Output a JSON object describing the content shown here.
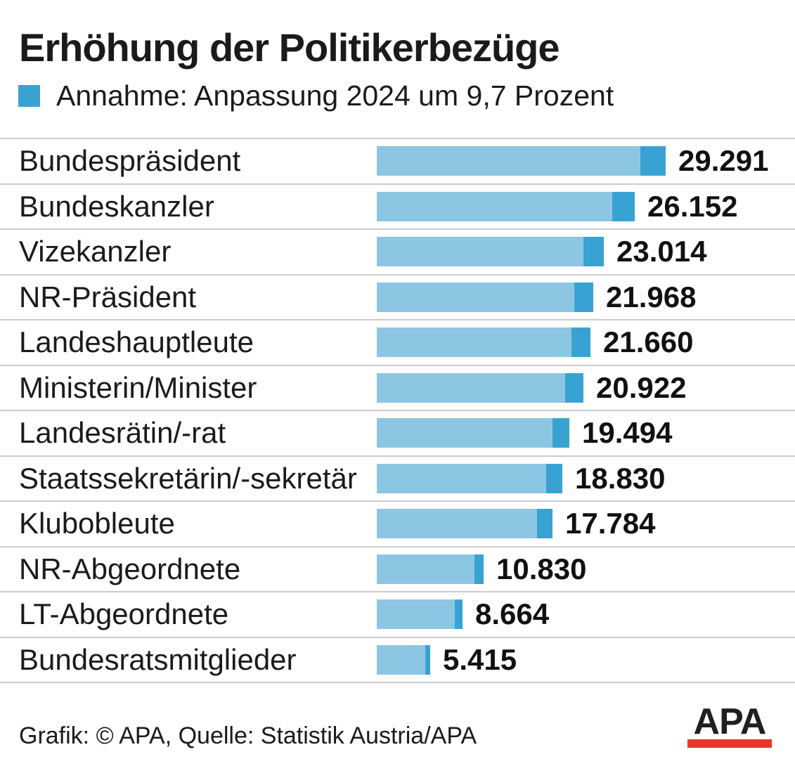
{
  "title": "Erhöhung der Politikerbezüge",
  "legend": {
    "label": "Annahme: Anpassung 2024 um 9,7 Prozent",
    "swatch_color": "#38a3d2"
  },
  "chart_data": {
    "type": "bar",
    "orientation": "horizontal",
    "title": "Erhöhung der Politikerbezüge",
    "legend_entry": "Annahme: Anpassung 2024 um 9,7 Prozent",
    "increase_percent_2024": 9.7,
    "categories": [
      "Bundespräsident",
      "Bundeskanzler",
      "Vizekanzler",
      "NR-Präsident",
      "Landeshauptleute",
      "Ministerin/Minister",
      "Landesrätin/-rat",
      "Staatssekretärin/-sekretär",
      "Klubobleute",
      "NR-Abgeordnete",
      "LT-Abgeordnete",
      "Bundesratsmitglieder"
    ],
    "values": [
      29291,
      26152,
      23014,
      21968,
      21660,
      20922,
      19494,
      18830,
      17784,
      10830,
      8664,
      5415
    ],
    "value_labels": [
      "29.291",
      "26.152",
      "23.014",
      "21.968",
      "21.660",
      "20.922",
      "19.494",
      "18.830",
      "17.784",
      "10.830",
      "8.664",
      "5.415"
    ],
    "bar_note": "each bar = total amount; darker tip = assumed 9.7% increase portion for 2024",
    "xlim": [
      0,
      29291
    ],
    "grid": false,
    "legend_position": "top-left",
    "colors": {
      "bar_base": "#8dc6e2",
      "bar_increase": "#38a3d2",
      "separator": "#cccccc"
    }
  },
  "footer": {
    "credit": "Grafik: © APA, Quelle: Statistik Austria/APA",
    "logo_text": "APA",
    "logo_bar_color": "#e8362c"
  }
}
